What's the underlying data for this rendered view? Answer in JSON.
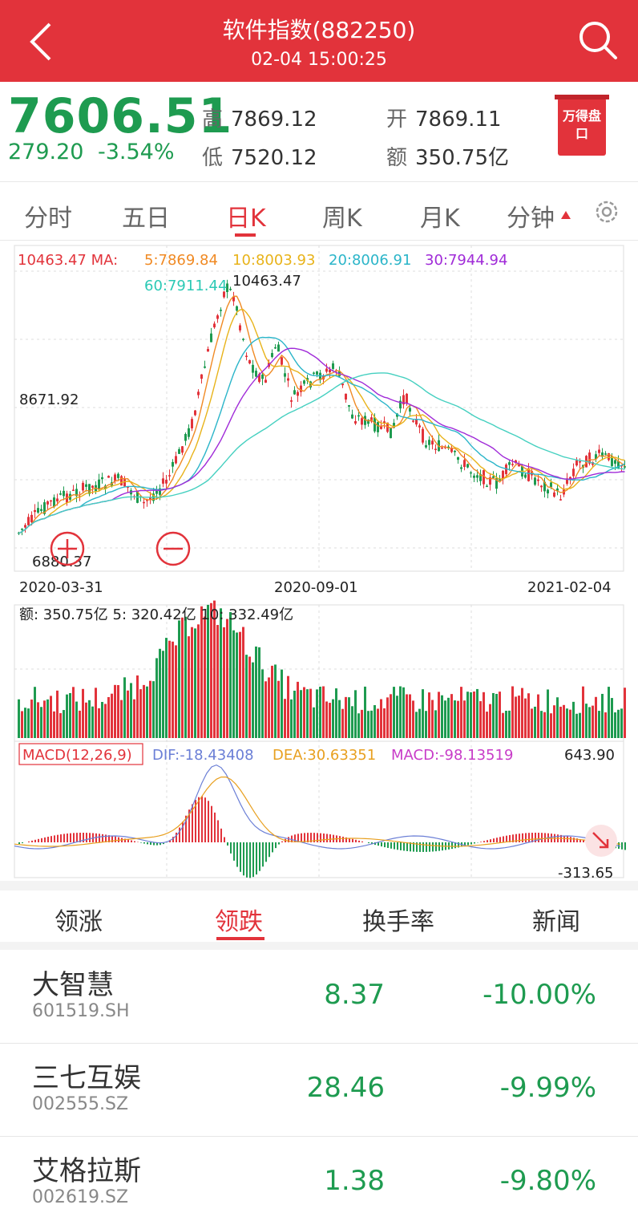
{
  "header": {
    "title": "软件指数(882250)",
    "time": "02-04 15:00:25"
  },
  "quote": {
    "price": "7606.51",
    "change": "279.20",
    "change_pct": "-3.54%",
    "high_label": "高",
    "high": "7869.12",
    "low_label": "低",
    "low": "7520.12",
    "open_label": "开",
    "open": "7869.11",
    "amount_label": "额",
    "amount": "350.75亿",
    "badge": "万得盘口"
  },
  "period_tabs": [
    "分时",
    "五日",
    "日K",
    "周K",
    "月K",
    "分钟"
  ],
  "active_period": "日K",
  "kline": {
    "ma_prefix": "10463.47  MA:",
    "ma5": "5:7869.84",
    "ma10": "10:8003.93",
    "ma20": "20:8006.91",
    "ma30": "30:7944.94",
    "ma60": "60:7911.44",
    "max_label": "10463.47",
    "mid_label": "8671.92",
    "min_label": "6880.37",
    "dates": [
      "2020-03-31",
      "2020-09-01",
      "2021-02-04"
    ],
    "volume_legend": "额: 350.75亿  5: 320.42亿  10: 332.49亿",
    "macd_name": "MACD(12,26,9)",
    "dif": "DIF:-18.43408",
    "dea": "DEA:30.63351",
    "macd": "MACD:-98.13519",
    "macd_max": "643.90",
    "macd_min": "-313.65"
  },
  "colors": {
    "red": "#e2333b",
    "green": "#1e9b50",
    "ma5": "#f08a24",
    "ma10": "#e8b31a",
    "ma20": "#2bb5c9",
    "ma30": "#a02bd8",
    "dif": "#6b7fd6",
    "dea": "#e8a020",
    "macd": "#c83cc8"
  },
  "stock_tabs": [
    "领涨",
    "领跌",
    "换手率",
    "新闻"
  ],
  "active_stock_tab": "领跌",
  "stocks": [
    {
      "name": "大智慧",
      "code": "601519.SH",
      "price": "8.37",
      "pct": "-10.00%"
    },
    {
      "name": "三七互娱",
      "code": "002555.SZ",
      "price": "28.46",
      "pct": "-9.99%"
    },
    {
      "name": "艾格拉斯",
      "code": "002619.SZ",
      "price": "1.38",
      "pct": "-9.80%"
    }
  ]
}
